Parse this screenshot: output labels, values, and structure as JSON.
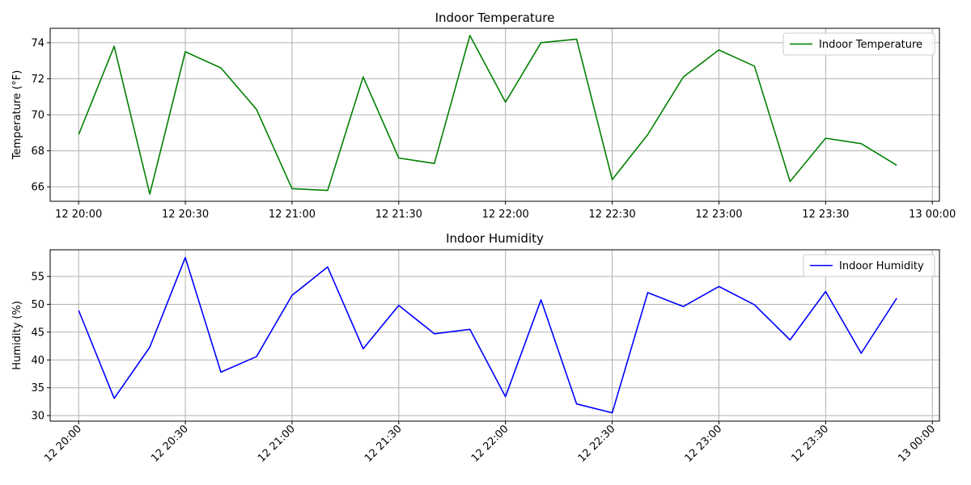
{
  "colors": {
    "temperature_line": "#008000",
    "humidity_line": "#0000ff",
    "grid": "#b0b0b0",
    "axis": "#000000",
    "legend_border": "#cccccc"
  },
  "chart_data": [
    {
      "type": "line",
      "title": "Indoor Temperature",
      "xlabel": "",
      "ylabel": "Temperature (°F)",
      "x": [
        "20:00",
        "20:10",
        "20:20",
        "20:30",
        "20:40",
        "20:50",
        "21:00",
        "21:10",
        "21:20",
        "21:30",
        "21:40",
        "21:50",
        "22:00",
        "22:10",
        "22:20",
        "22:30",
        "22:40",
        "22:50",
        "23:00",
        "23:10",
        "23:20",
        "23:30",
        "23:40",
        "23:50"
      ],
      "series": [
        {
          "name": "Indoor Temperature",
          "color": "#008000",
          "values": [
            68.9,
            73.8,
            65.6,
            73.5,
            72.6,
            70.3,
            65.9,
            65.8,
            72.1,
            67.6,
            67.3,
            74.4,
            70.7,
            74.0,
            74.2,
            66.4,
            68.9,
            72.1,
            73.6,
            72.7,
            66.3,
            68.7,
            68.4,
            67.2
          ]
        }
      ],
      "xlim": [
        "12 19:52",
        "13 00:02"
      ],
      "ylim": [
        65.2,
        74.8
      ],
      "xticks": [
        "12 20:00",
        "12 20:30",
        "12 21:00",
        "12 21:30",
        "12 22:00",
        "12 22:30",
        "12 23:00",
        "12 23:30",
        "13 00:00"
      ],
      "yticks": [
        66,
        68,
        70,
        72,
        74
      ],
      "grid": true,
      "legend": "top-right",
      "xtick_rotation": 0
    },
    {
      "type": "line",
      "title": "Indoor Humidity",
      "xlabel": "",
      "ylabel": "Humidity (%)",
      "x": [
        "20:00",
        "20:10",
        "20:20",
        "20:30",
        "20:40",
        "20:50",
        "21:00",
        "21:10",
        "21:20",
        "21:30",
        "21:40",
        "21:50",
        "22:00",
        "22:10",
        "22:20",
        "22:30",
        "22:40",
        "22:50",
        "23:00",
        "23:10",
        "23:20",
        "23:30",
        "23:40",
        "23:50"
      ],
      "series": [
        {
          "name": "Indoor Humidity",
          "color": "#0000ff",
          "values": [
            48.9,
            33.1,
            42.3,
            58.4,
            37.8,
            40.6,
            51.6,
            56.7,
            42.0,
            49.8,
            44.7,
            45.5,
            33.4,
            50.8,
            32.1,
            30.5,
            52.1,
            49.6,
            53.2,
            49.9,
            43.6,
            52.3,
            41.2,
            51.1
          ]
        }
      ],
      "xlim": [
        "12 19:52",
        "13 00:02"
      ],
      "ylim": [
        29.0,
        59.8
      ],
      "xticks": [
        "12 20:00",
        "12 20:30",
        "12 21:00",
        "12 21:30",
        "12 22:00",
        "12 22:30",
        "12 23:00",
        "12 23:30",
        "13 00:00"
      ],
      "yticks": [
        30,
        35,
        40,
        45,
        50,
        55
      ],
      "grid": true,
      "legend": "top-right",
      "xtick_rotation": 45
    }
  ]
}
